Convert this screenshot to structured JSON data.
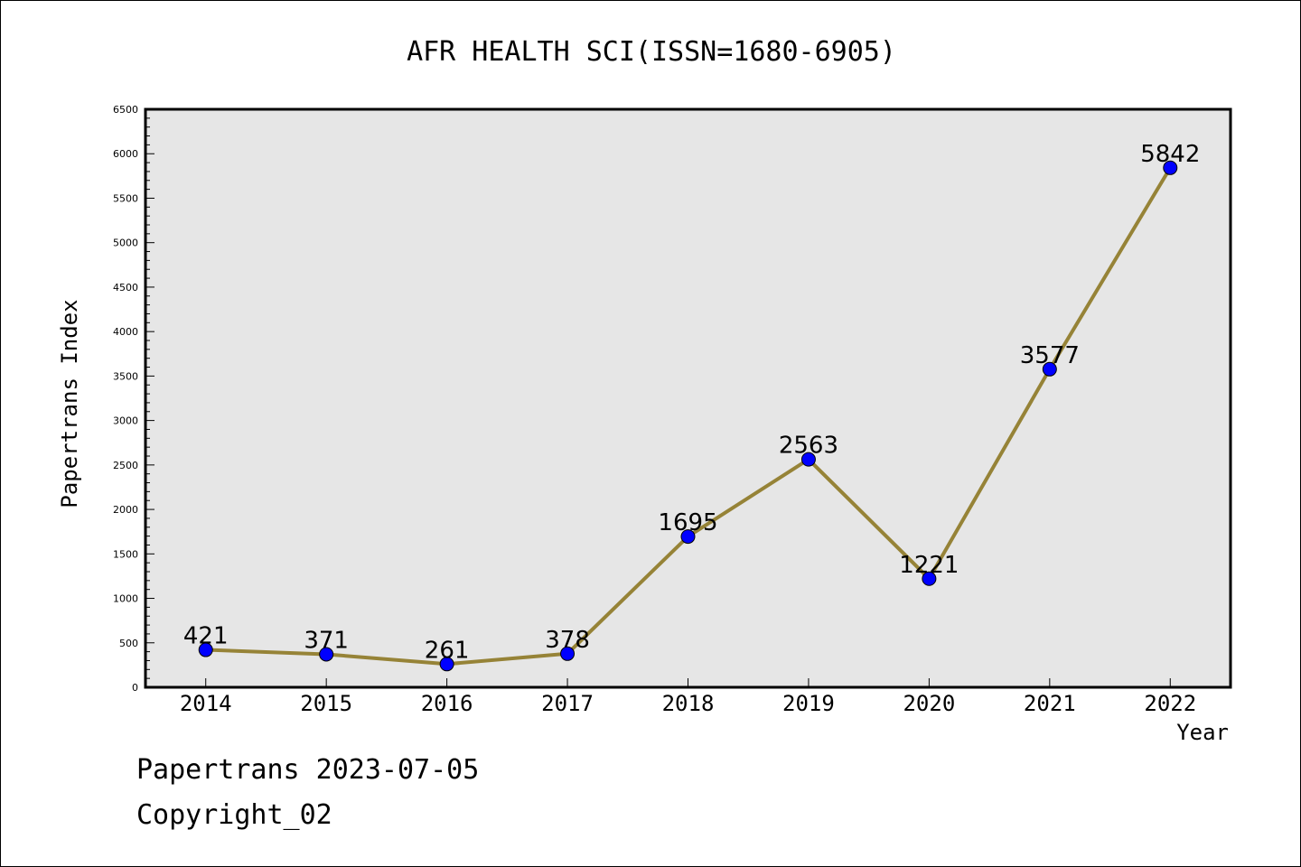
{
  "chart_data": {
    "type": "line",
    "title": "AFR HEALTH SCI(ISSN=1680-6905)",
    "xlabel": "Year",
    "ylabel": "Papertrans Index",
    "x": [
      "2014",
      "2015",
      "2016",
      "2017",
      "2018",
      "2019",
      "2020",
      "2021",
      "2022"
    ],
    "series": [
      {
        "values": [
          421,
          371,
          261,
          378,
          1695,
          2563,
          1221,
          3577,
          5842
        ]
      }
    ],
    "data_labels": [
      "421",
      "371",
      "261",
      "378",
      "1695",
      "2563",
      "1221",
      "3577",
      "5842"
    ],
    "ylim": [
      0,
      6500
    ],
    "yticks": [
      "0",
      "500",
      "1000",
      "1500",
      "2000",
      "2500",
      "3000",
      "3500",
      "4000",
      "4500",
      "5000",
      "5500",
      "6000",
      "6500"
    ],
    "grid": false,
    "colors": {
      "line": "#968337",
      "marker": "#0000ff",
      "plot_background": "#e6e6e6"
    }
  },
  "footer": {
    "line1": "Papertrans 2023-07-05",
    "line2": "Copyright_02"
  }
}
